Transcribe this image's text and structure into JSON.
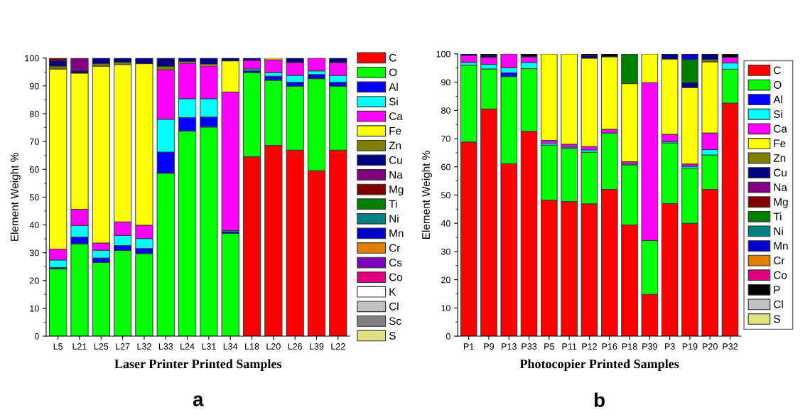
{
  "chart_data": [
    {
      "type": "bar",
      "stacked": true,
      "xlabel": "Laser Printer Printed Samples",
      "ylabel": "Element Weight %",
      "annotations": [
        "a"
      ],
      "legend": "right",
      "ylim": [
        0,
        100
      ],
      "yticks": [
        0,
        10,
        20,
        30,
        40,
        50,
        60,
        70,
        80,
        90,
        100
      ],
      "categories": [
        "L5",
        "L21",
        "L25",
        "L27",
        "L32",
        "L33",
        "L24",
        "L31",
        "L34",
        "L18",
        "L20",
        "L26",
        "L39",
        "L22"
      ],
      "series": [
        {
          "name": "C",
          "color": "#ff0000",
          "values": [
            null,
            null,
            null,
            null,
            null,
            null,
            null,
            null,
            null,
            64.5,
            68.6,
            66.9,
            59.5,
            66.9
          ]
        },
        {
          "name": "O",
          "color": "#00ff00",
          "values": [
            24.2,
            33.2,
            26.5,
            30.8,
            29.7,
            58.6,
            73.8,
            75.2,
            37.0,
            30.3,
            23.4,
            23.0,
            33.1,
            23.0
          ]
        },
        {
          "name": "Al",
          "color": "#0000ff",
          "values": [
            0.5,
            2.4,
            1.6,
            1.8,
            1.8,
            7.6,
            4.8,
            3.6,
            0.6,
            0.7,
            1.5,
            1.4,
            1.5,
            1.4
          ]
        },
        {
          "name": "Si",
          "color": "#00ffff",
          "values": [
            2.7,
            4.2,
            2.8,
            3.6,
            3.6,
            11.8,
            6.8,
            6.6,
            0.4,
            0.6,
            1.3,
            2.5,
            1.3,
            2.5
          ]
        },
        {
          "name": "Ca",
          "color": "#ff00ff",
          "values": [
            3.9,
            5.8,
            2.6,
            4.9,
            4.8,
            17.8,
            12.8,
            11.8,
            49.8,
            3.1,
            4.6,
            4.6,
            4.6,
            4.6
          ]
        },
        {
          "name": "Fe",
          "color": "#ffff00",
          "values": [
            64.8,
            49.0,
            63.6,
            56.6,
            58.1,
            null,
            0.5,
            0.6,
            11.2,
            null,
            0.6,
            null,
            null,
            null
          ]
        },
        {
          "name": "Zn",
          "color": "#808000",
          "values": [
            1.0,
            null,
            0.9,
            0.8,
            null,
            1.2,
            null,
            null,
            null,
            null,
            null,
            null,
            null,
            null
          ]
        },
        {
          "name": "Cu",
          "color": "#000080",
          "values": [
            2.0,
            0.8,
            2.0,
            1.5,
            2.0,
            3.0,
            1.3,
            2.2,
            1.0,
            0.8,
            null,
            1.6,
            null,
            1.6
          ]
        },
        {
          "name": "Na",
          "color": "#800080",
          "values": [
            null,
            4.6,
            null,
            null,
            null,
            null,
            null,
            null,
            null,
            null,
            null,
            null,
            null,
            null
          ]
        },
        {
          "name": "Mg",
          "color": "#800000",
          "values": [
            0.9,
            null,
            null,
            null,
            null,
            null,
            null,
            null,
            null,
            null,
            null,
            null,
            null,
            null
          ]
        },
        {
          "name": "Ti",
          "color": "#008000",
          "values": [
            null,
            null,
            null,
            null,
            null,
            null,
            null,
            null,
            null,
            null,
            null,
            null,
            null,
            null
          ]
        },
        {
          "name": "Ni",
          "color": "#008080",
          "values": [
            null,
            null,
            null,
            null,
            null,
            null,
            null,
            null,
            null,
            null,
            null,
            null,
            null,
            null
          ]
        },
        {
          "name": "Mn",
          "color": "#0000cc",
          "values": [
            null,
            null,
            null,
            null,
            null,
            null,
            null,
            null,
            null,
            null,
            null,
            null,
            null,
            null
          ]
        },
        {
          "name": "Cr",
          "color": "#e08000",
          "values": [
            null,
            null,
            null,
            null,
            null,
            null,
            null,
            null,
            null,
            null,
            null,
            null,
            null,
            null
          ]
        },
        {
          "name": "Cs",
          "color": "#8000c0",
          "values": [
            null,
            null,
            null,
            null,
            null,
            null,
            null,
            null,
            null,
            null,
            null,
            null,
            null,
            null
          ]
        },
        {
          "name": "Co",
          "color": "#e0007f",
          "values": [
            null,
            null,
            null,
            null,
            null,
            null,
            null,
            null,
            null,
            null,
            null,
            null,
            null,
            null
          ]
        },
        {
          "name": "K",
          "color": "#ffffff",
          "values": [
            null,
            null,
            null,
            null,
            null,
            null,
            null,
            null,
            null,
            null,
            null,
            null,
            null,
            null
          ]
        },
        {
          "name": "Cl",
          "color": "#c0c0c0",
          "values": [
            null,
            null,
            null,
            null,
            null,
            null,
            null,
            null,
            null,
            null,
            null,
            null,
            null,
            null
          ]
        },
        {
          "name": "Sc",
          "color": "#808080",
          "values": [
            null,
            null,
            null,
            null,
            null,
            null,
            null,
            null,
            null,
            null,
            null,
            null,
            null,
            null
          ]
        },
        {
          "name": "S",
          "color": "#e0e080",
          "values": [
            null,
            null,
            null,
            null,
            null,
            null,
            null,
            null,
            null,
            null,
            null,
            null,
            null,
            null
          ]
        }
      ]
    },
    {
      "type": "bar",
      "stacked": true,
      "xlabel": "Photocopier Printed Samples",
      "ylabel": "Element Weight %",
      "annotations": [
        "b"
      ],
      "legend": "right",
      "ylim": [
        0,
        100
      ],
      "yticks": [
        0,
        10,
        20,
        30,
        40,
        50,
        60,
        70,
        80,
        90,
        100
      ],
      "categories": [
        "P1",
        "P9",
        "P13",
        "P33",
        "P5",
        "P11",
        "P12",
        "P16",
        "P18",
        "P39",
        "P3",
        "P19",
        "P20",
        "P32"
      ],
      "series": [
        {
          "name": "C",
          "color": "#ff0000",
          "values": [
            68.8,
            80.5,
            61.1,
            72.6,
            48.2,
            47.7,
            46.9,
            52.0,
            39.4,
            14.8,
            47.0,
            40.0,
            52.0,
            82.6
          ]
        },
        {
          "name": "O",
          "color": "#00ff00",
          "values": [
            27.2,
            14.2,
            30.9,
            22.2,
            19.5,
            18.8,
            18.3,
            20.0,
            21.3,
            19.1,
            21.5,
            19.6,
            12.2,
            12.0
          ]
        },
        {
          "name": "Al",
          "color": "#0000ff",
          "values": [
            null,
            null,
            1.3,
            null,
            null,
            null,
            null,
            null,
            null,
            null,
            null,
            null,
            null,
            null
          ]
        },
        {
          "name": "Si",
          "color": "#00ffff",
          "values": [
            1.0,
            1.6,
            1.8,
            2.2,
            0.7,
            0.5,
            0.8,
            null,
            0.3,
            null,
            0.5,
            0.6,
            1.9,
            2.2
          ]
        },
        {
          "name": "Ca",
          "color": "#ff00ff",
          "values": [
            2.5,
            2.5,
            4.9,
            2.0,
            1.0,
            1.0,
            1.2,
            1.3,
            0.8,
            55.9,
            2.5,
            0.8,
            5.9,
            2.0
          ]
        },
        {
          "name": "Fe",
          "color": "#ffff00",
          "values": [
            null,
            null,
            null,
            null,
            30.6,
            32.0,
            31.3,
            25.7,
            27.7,
            10.2,
            26.7,
            27.1,
            25.2,
            null
          ]
        },
        {
          "name": "Zn",
          "color": "#808000",
          "values": [
            null,
            null,
            null,
            null,
            null,
            null,
            null,
            null,
            null,
            null,
            null,
            null,
            0.8,
            null
          ]
        },
        {
          "name": "Cu",
          "color": "#000080",
          "values": [
            0.5,
            0.6,
            null,
            null,
            null,
            null,
            1.0,
            null,
            null,
            null,
            1.8,
            1.8,
            2.0,
            null
          ]
        },
        {
          "name": "Na",
          "color": "#800080",
          "values": [
            null,
            null,
            null,
            null,
            null,
            null,
            null,
            null,
            null,
            null,
            null,
            null,
            null,
            null
          ]
        },
        {
          "name": "Mg",
          "color": "#800000",
          "values": [
            null,
            null,
            null,
            null,
            null,
            null,
            null,
            null,
            null,
            null,
            null,
            null,
            null,
            null
          ]
        },
        {
          "name": "Ti",
          "color": "#008000",
          "values": [
            null,
            null,
            null,
            null,
            null,
            null,
            null,
            null,
            10.5,
            null,
            null,
            8.1,
            null,
            null
          ]
        },
        {
          "name": "Ni",
          "color": "#008080",
          "values": [
            null,
            null,
            null,
            null,
            null,
            null,
            null,
            null,
            null,
            null,
            null,
            null,
            null,
            null
          ]
        },
        {
          "name": "Mn",
          "color": "#0000cc",
          "values": [
            null,
            null,
            null,
            null,
            null,
            null,
            null,
            null,
            null,
            null,
            null,
            2.0,
            null,
            null
          ]
        },
        {
          "name": "Cr",
          "color": "#e08000",
          "values": [
            null,
            null,
            null,
            null,
            null,
            null,
            null,
            null,
            null,
            null,
            null,
            null,
            null,
            null
          ]
        },
        {
          "name": "Co",
          "color": "#e0007f",
          "values": [
            null,
            null,
            null,
            null,
            null,
            null,
            null,
            null,
            null,
            null,
            null,
            null,
            null,
            null
          ]
        },
        {
          "name": "P",
          "color": "#000000",
          "values": [
            null,
            0.6,
            null,
            1.0,
            null,
            null,
            0.5,
            1.0,
            null,
            null,
            null,
            null,
            null,
            1.2
          ]
        },
        {
          "name": "Cl",
          "color": "#c0c0c0",
          "values": [
            null,
            null,
            null,
            null,
            null,
            null,
            null,
            null,
            null,
            null,
            null,
            null,
            null,
            null
          ]
        },
        {
          "name": "S",
          "color": "#e0e080",
          "values": [
            null,
            null,
            null,
            null,
            null,
            null,
            null,
            null,
            null,
            null,
            null,
            null,
            null,
            null
          ]
        }
      ]
    }
  ]
}
